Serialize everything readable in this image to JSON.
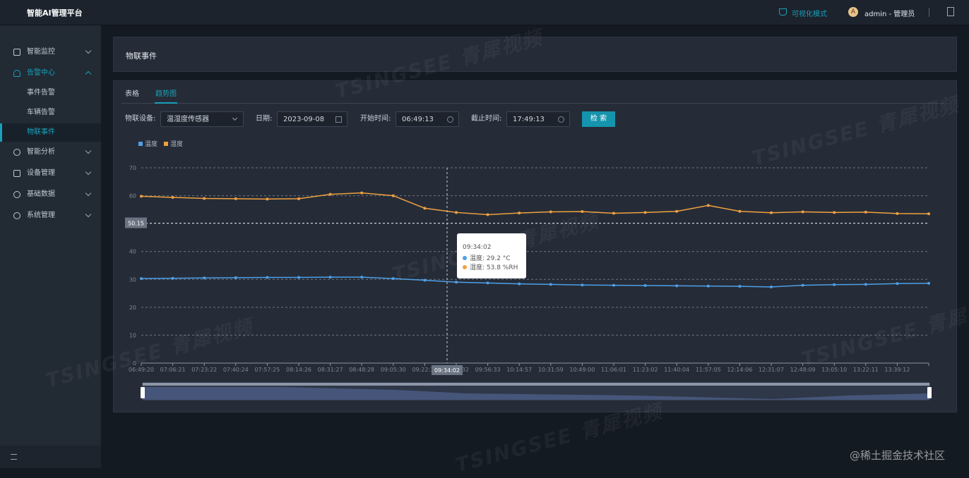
{
  "header": {
    "title": "智能AI管理平台",
    "mode": "可视化模式",
    "avatar": "A",
    "user": "admin - 管理员"
  },
  "sidebar": {
    "items": [
      {
        "label": "智能监控"
      },
      {
        "label": "告警中心",
        "children": [
          "事件告警",
          "车辆告警",
          "物联事件"
        ]
      },
      {
        "label": "智能分析"
      },
      {
        "label": "设备管理"
      },
      {
        "label": "基础数据"
      },
      {
        "label": "系统管理"
      }
    ]
  },
  "page_title": "物联事件",
  "tabs": [
    "表格",
    "趋势图"
  ],
  "filters": [
    {
      "label": "物联设备:",
      "value": "温湿度传感器"
    },
    {
      "label": "日期:",
      "value": "2023-09-08"
    },
    {
      "label": "开始时间:",
      "value": "06:49:13"
    },
    {
      "label": "截止时间:",
      "value": "17:49:13"
    }
  ],
  "search_button": "检 索",
  "watermark": "TSINGSEE 青犀视频",
  "credit": "@稀土掘金技术社区",
  "chart_data": {
    "type": "line",
    "categories": [
      "06:49:20",
      "07:06:21",
      "07:23:22",
      "07:40:24",
      "07:57:25",
      "08:14:26",
      "08:31:27",
      "08:48:28",
      "09:05:30",
      "09:22:31",
      "09:39:32",
      "09:56:33",
      "10:14:57",
      "10:31:59",
      "10:49:00",
      "11:06:01",
      "11:23:02",
      "11:40:04",
      "11:57:05",
      "12:14:06",
      "12:31:07",
      "12:48:09",
      "13:05:10",
      "13:22:11",
      "13:39:12",
      null
    ],
    "series": [
      {
        "name": "温度",
        "color": "#4e9fe8",
        "values": [
          30.3,
          30.4,
          30.5,
          30.6,
          30.7,
          30.7,
          30.8,
          30.8,
          30.3,
          29.7,
          29.0,
          28.7,
          28.4,
          28.2,
          28.0,
          27.9,
          27.8,
          27.7,
          27.6,
          27.5,
          27.3,
          27.9,
          28.1,
          28.2,
          28.5,
          28.6
        ]
      },
      {
        "name": "湿度",
        "color": "#f0a040",
        "values": [
          59.8,
          59.4,
          59.0,
          58.9,
          58.8,
          58.9,
          60.5,
          61.0,
          60.0,
          55.5,
          54.0,
          53.2,
          53.8,
          54.2,
          54.3,
          53.7,
          54.0,
          54.4,
          56.5,
          54.4,
          53.9,
          54.2,
          54.0,
          54.1,
          53.6,
          53.5
        ]
      }
    ],
    "ylim": [
      0,
      70
    ],
    "yticks": [
      0,
      10,
      20,
      30,
      40,
      50,
      60,
      70
    ],
    "grid": true,
    "axis_pointer": {
      "y_label": "50.15",
      "x_label": "09:34:02"
    },
    "tooltip": {
      "title": "09:34:02",
      "rows": [
        "温度: 29.2 °C",
        "湿度: 53.8 %RH"
      ]
    }
  }
}
